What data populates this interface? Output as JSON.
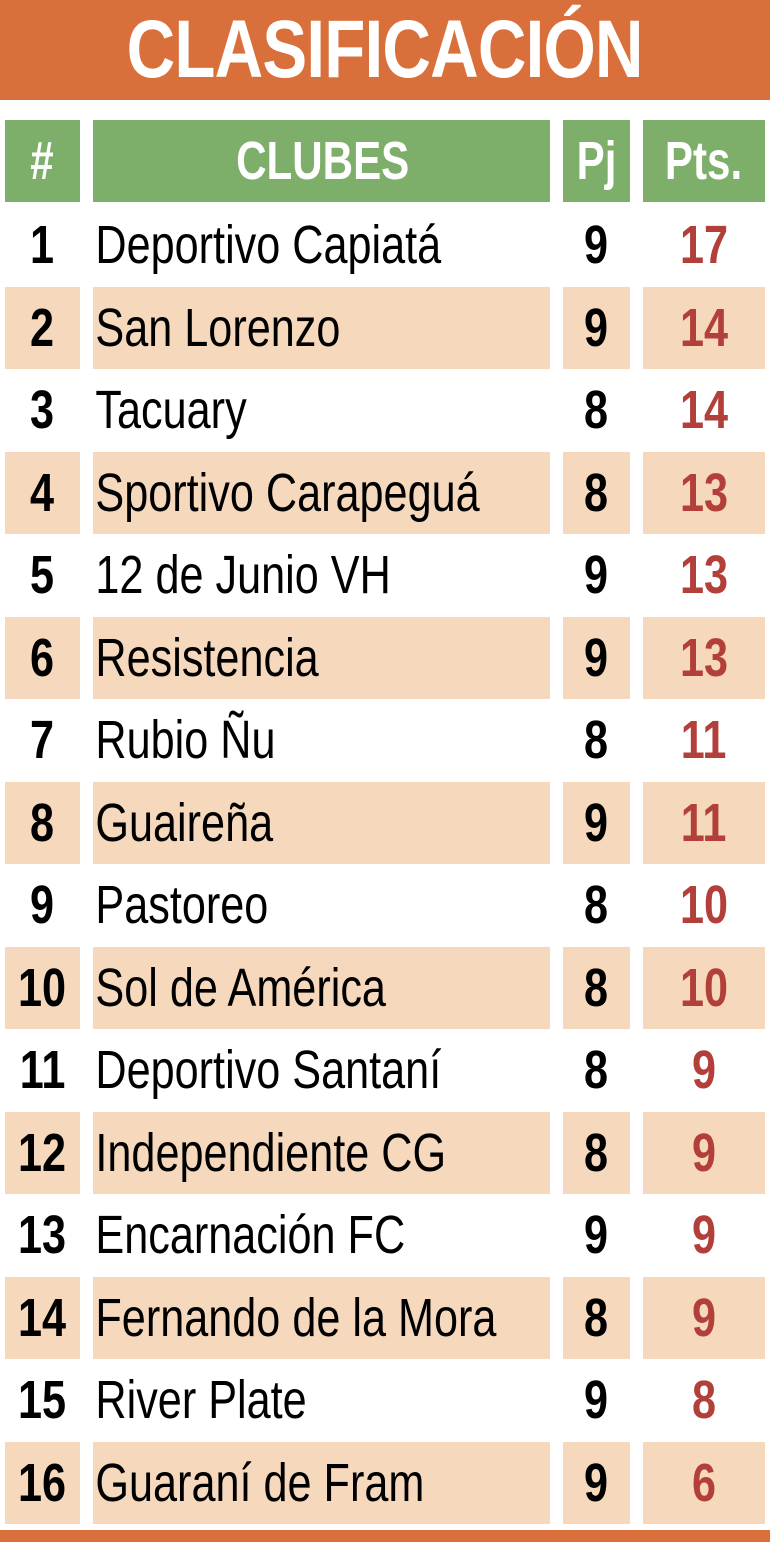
{
  "title": "CLASIFICACIÓN",
  "colors": {
    "title_bg": "#d9703c",
    "header_bg": "#7dae6a",
    "alt_row_bg": "#f6d9bd",
    "points_text": "#b33f3a"
  },
  "headers": {
    "rank": "#",
    "club": "CLUBES",
    "played": "Pj",
    "points": "Pts."
  },
  "rows": [
    {
      "rank": "1",
      "club": "Deportivo Capiatá",
      "played": "9",
      "points": "17"
    },
    {
      "rank": "2",
      "club": "San Lorenzo",
      "played": "9",
      "points": "14"
    },
    {
      "rank": "3",
      "club": "Tacuary",
      "played": "8",
      "points": "14"
    },
    {
      "rank": "4",
      "club": "Sportivo Carapeguá",
      "played": "8",
      "points": "13"
    },
    {
      "rank": "5",
      "club": "12 de Junio VH",
      "played": "9",
      "points": "13"
    },
    {
      "rank": "6",
      "club": "Resistencia",
      "played": "9",
      "points": "13"
    },
    {
      "rank": "7",
      "club": "Rubio Ñu",
      "played": "8",
      "points": "11"
    },
    {
      "rank": "8",
      "club": "Guaireña",
      "played": "9",
      "points": "11"
    },
    {
      "rank": "9",
      "club": "Pastoreo",
      "played": "8",
      "points": "10"
    },
    {
      "rank": "10",
      "club": "Sol de América",
      "played": "8",
      "points": "10"
    },
    {
      "rank": "11",
      "club": "Deportivo Santaní",
      "played": "8",
      "points": "9"
    },
    {
      "rank": "12",
      "club": "Independiente CG",
      "played": "8",
      "points": "9"
    },
    {
      "rank": "13",
      "club": "Encarnación FC",
      "played": "9",
      "points": "9"
    },
    {
      "rank": "14",
      "club": "Fernando de la Mora",
      "played": "8",
      "points": "9"
    },
    {
      "rank": "15",
      "club": "River Plate",
      "played": "9",
      "points": "8"
    },
    {
      "rank": "16",
      "club": "Guaraní de Fram",
      "played": "9",
      "points": "6"
    }
  ]
}
